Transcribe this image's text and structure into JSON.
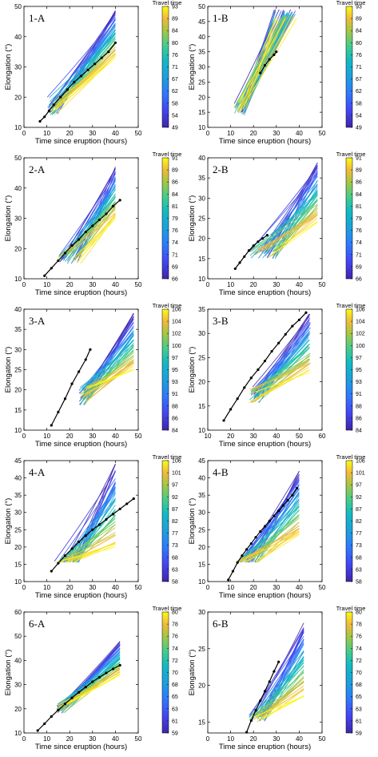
{
  "figure": {
    "colorbar_title": "Travel time",
    "xlabel": "Time since eruption (hours)",
    "ylabel": "Elongation (°)"
  },
  "chart_data": [
    {
      "type": "line",
      "panel": "1-A",
      "xticks": [
        "0",
        "10",
        "20",
        "30",
        "40",
        "50"
      ],
      "yticks": [
        "10",
        "20",
        "30",
        "40",
        "50"
      ],
      "xlim": [
        0,
        50
      ],
      "ylim": [
        10,
        50
      ],
      "colorbar_ticks": [
        "93",
        "89",
        "84",
        "80",
        "76",
        "71",
        "67",
        "62",
        "58",
        "54",
        "49"
      ],
      "ensemble": {
        "x_start": [
          10,
          15
        ],
        "x_end": 40,
        "y_start": [
          14,
          20
        ],
        "y_end": [
          33,
          49
        ]
      },
      "observed": {
        "x": [
          7,
          9,
          11,
          13,
          16,
          19,
          22,
          25,
          28,
          31,
          34,
          37,
          40
        ],
        "y": [
          12,
          13.5,
          15.5,
          17.5,
          20,
          22.5,
          25,
          27,
          29,
          31,
          33,
          35,
          38
        ]
      }
    },
    {
      "type": "line",
      "panel": "1-B",
      "xticks": [
        "0",
        "10",
        "20",
        "30",
        "40",
        "50"
      ],
      "yticks": [
        "10",
        "15",
        "20",
        "25",
        "30",
        "35",
        "40",
        "45",
        "50"
      ],
      "xlim": [
        0,
        50
      ],
      "ylim": [
        10,
        50
      ],
      "colorbar_ticks": [
        "93",
        "89",
        "84",
        "80",
        "76",
        "71",
        "67",
        "62",
        "58",
        "54",
        "49"
      ],
      "ensemble": {
        "x_start": [
          11,
          17
        ],
        "x_end": [
          29,
          39
        ],
        "y_start": [
          14,
          19
        ],
        "y_end": [
          46,
          49
        ]
      },
      "observed": {
        "x": [
          23,
          25,
          27,
          29,
          30
        ],
        "y": [
          28,
          30.5,
          32.5,
          34,
          35
        ]
      }
    },
    {
      "type": "line",
      "panel": "2-A",
      "xticks": [
        "0",
        "10",
        "20",
        "30",
        "40",
        "50"
      ],
      "yticks": [
        "10",
        "20",
        "30",
        "40",
        "50"
      ],
      "xlim": [
        0,
        50
      ],
      "ylim": [
        10,
        50
      ],
      "colorbar_ticks": [
        "91",
        "89",
        "86",
        "84",
        "81",
        "79",
        "76",
        "74",
        "71",
        "69",
        "66"
      ],
      "ensemble": {
        "x_start": [
          15,
          25
        ],
        "x_end": 40,
        "y_start": [
          15,
          18
        ],
        "y_end": [
          30,
          47
        ]
      },
      "observed": {
        "x": [
          9,
          12,
          15,
          18,
          21,
          24,
          27,
          30,
          33,
          36,
          39,
          42
        ],
        "y": [
          11,
          13.5,
          16,
          18.5,
          21,
          23,
          25.5,
          27.5,
          29.5,
          31.5,
          34,
          36
        ]
      }
    },
    {
      "type": "line",
      "panel": "2-B",
      "xticks": [
        "0",
        "10",
        "20",
        "30",
        "40",
        "50"
      ],
      "yticks": [
        "10",
        "15",
        "20",
        "25",
        "30",
        "35",
        "40"
      ],
      "xlim": [
        0,
        50
      ],
      "ylim": [
        10,
        40
      ],
      "colorbar_ticks": [
        "91",
        "89",
        "86",
        "84",
        "81",
        "79",
        "76",
        "74",
        "71",
        "69",
        "66"
      ],
      "ensemble": {
        "x_start": [
          18,
          30
        ],
        "x_end": 48,
        "y_start": [
          15,
          18
        ],
        "y_end": [
          24,
          39
        ]
      },
      "observed": {
        "x": [
          12,
          14,
          16,
          18,
          20,
          22,
          24,
          26
        ],
        "y": [
          12.5,
          14,
          15.5,
          17,
          18.2,
          19.2,
          20,
          20.8
        ]
      }
    },
    {
      "type": "line",
      "panel": "3-A",
      "xticks": [
        "0",
        "10",
        "20",
        "30",
        "40",
        "50"
      ],
      "yticks": [
        "10",
        "15",
        "20",
        "25",
        "30",
        "35",
        "40"
      ],
      "xlim": [
        0,
        50
      ],
      "ylim": [
        10,
        40
      ],
      "colorbar_ticks": [
        "106",
        "104",
        "102",
        "100",
        "97",
        "95",
        "93",
        "91",
        "88",
        "86",
        "84"
      ],
      "ensemble": {
        "x_start": [
          24,
          28
        ],
        "x_end": 48,
        "y_start": [
          16,
          21
        ],
        "y_end": [
          25,
          39
        ]
      },
      "observed": {
        "x": [
          12,
          15,
          18,
          21,
          24,
          27,
          29
        ],
        "y": [
          11.2,
          14.5,
          17.8,
          21.5,
          24.5,
          27.5,
          30
        ]
      }
    },
    {
      "type": "line",
      "panel": "3-B",
      "xticks": [
        "10",
        "20",
        "30",
        "40",
        "50",
        "60"
      ],
      "yticks": [
        "10",
        "15",
        "20",
        "25",
        "30",
        "35"
      ],
      "xlim": [
        10,
        60
      ],
      "ylim": [
        10,
        35
      ],
      "colorbar_ticks": [
        "106",
        "104",
        "102",
        "100",
        "97",
        "95",
        "93",
        "91",
        "88",
        "86",
        "84"
      ],
      "ensemble": {
        "x_start": [
          28,
          33
        ],
        "x_end": [
          54,
          55
        ],
        "y_start": [
          15.5,
          19
        ],
        "y_end": [
          22,
          34
        ]
      },
      "observed": {
        "x": [
          17,
          20,
          23,
          26,
          29,
          32,
          35,
          38,
          41,
          44,
          47,
          50,
          53
        ],
        "y": [
          12,
          14.3,
          16.5,
          18.8,
          20.8,
          22.5,
          24.3,
          26.3,
          28,
          29.8,
          31.5,
          32.8,
          34.3
        ]
      }
    },
    {
      "type": "line",
      "panel": "4-A",
      "xticks": [
        "0",
        "10",
        "20",
        "30",
        "40",
        "50"
      ],
      "yticks": [
        "10",
        "15",
        "20",
        "25",
        "30",
        "35",
        "40",
        "45"
      ],
      "xlim": [
        0,
        50
      ],
      "ylim": [
        10,
        45
      ],
      "colorbar_ticks": [
        "106",
        "101",
        "97",
        "92",
        "87",
        "82",
        "77",
        "73",
        "68",
        "63",
        "58"
      ],
      "ensemble": {
        "x_start": [
          13,
          24
        ],
        "x_end": 40,
        "y_start": [
          15.5,
          16
        ],
        "y_end": [
          20,
          44
        ]
      },
      "observed": {
        "x": [
          12,
          15,
          18,
          21,
          24,
          27,
          30,
          33,
          36,
          39,
          42,
          45,
          48
        ],
        "y": [
          13,
          15.3,
          17.5,
          19.5,
          21.5,
          23.3,
          25,
          26.5,
          28,
          29.5,
          31,
          32.5,
          34
        ]
      }
    },
    {
      "type": "line",
      "panel": "4-B",
      "xticks": [
        "0",
        "10",
        "20",
        "30",
        "40",
        "50"
      ],
      "yticks": [
        "10",
        "15",
        "20",
        "25",
        "30",
        "35",
        "40",
        "45"
      ],
      "xlim": [
        0,
        50
      ],
      "ylim": [
        10,
        45
      ],
      "colorbar_ticks": [
        "106",
        "101",
        "97",
        "92",
        "87",
        "82",
        "77",
        "73",
        "68",
        "63",
        "58"
      ],
      "ensemble": {
        "x_start": [
          12,
          22
        ],
        "x_end": 40,
        "y_start": [
          15.5,
          16
        ],
        "y_end": [
          23,
          42
        ]
      },
      "observed": {
        "x": [
          9,
          11,
          13,
          15,
          17,
          19,
          21,
          23,
          25,
          27,
          29,
          31,
          33,
          35,
          37,
          39
        ],
        "y": [
          10.5,
          13,
          15.5,
          17.5,
          19.3,
          21,
          22.8,
          24.5,
          26,
          27.5,
          29,
          30.5,
          32,
          33.5,
          35,
          37
        ]
      }
    },
    {
      "type": "line",
      "panel": "6-A",
      "xticks": [
        "0",
        "10",
        "20",
        "30",
        "40",
        "50"
      ],
      "yticks": [
        "10",
        "20",
        "30",
        "40",
        "50",
        "60"
      ],
      "xlim": [
        0,
        50
      ],
      "ylim": [
        10,
        60
      ],
      "colorbar_ticks": [
        "80",
        "78",
        "76",
        "74",
        "72",
        "70",
        "68",
        "65",
        "63",
        "61",
        "59"
      ],
      "ensemble": {
        "x_start": [
          14,
          18
        ],
        "x_end": 42,
        "y_start": [
          18,
          22
        ],
        "y_end": [
          34,
          48
        ]
      },
      "observed": {
        "x": [
          6,
          9,
          12,
          15,
          18,
          21,
          24,
          27,
          30,
          33,
          36,
          39,
          42
        ],
        "y": [
          11,
          13.8,
          16.8,
          19.5,
          22,
          24.5,
          26.8,
          29,
          31.2,
          33,
          34.8,
          36.5,
          38
        ]
      }
    },
    {
      "type": "line",
      "panel": "6-B",
      "xticks": [
        "0",
        "10",
        "20",
        "30",
        "40",
        "50"
      ],
      "yticks": [
        "15",
        "20",
        "25",
        "30"
      ],
      "xlim": [
        0,
        50
      ],
      "ylim": [
        13.5,
        30
      ],
      "colorbar_ticks": [
        "80",
        "78",
        "76",
        "74",
        "72",
        "70",
        "68",
        "65",
        "63",
        "61",
        "59"
      ],
      "ensemble": {
        "x_start": [
          18,
          25
        ],
        "x_end": 42,
        "y_start": [
          15,
          16
        ],
        "y_end": [
          18.5,
          28.5
        ]
      },
      "observed": {
        "x": [
          17,
          19,
          21,
          23,
          25,
          27,
          29,
          31
        ],
        "y": [
          13.6,
          15.2,
          16.6,
          17.9,
          19.2,
          20.5,
          21.9,
          23.2
        ]
      }
    }
  ]
}
